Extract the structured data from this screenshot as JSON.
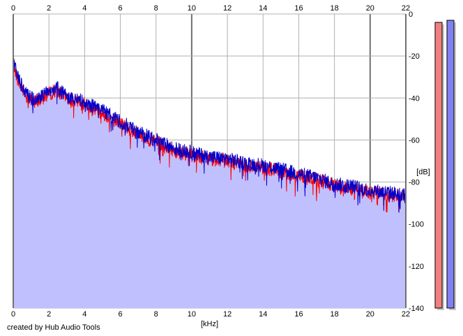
{
  "chart_data": {
    "type": "area",
    "xlabel": "[kHz]",
    "ylabel": "[dB]",
    "xlim": [
      0,
      22
    ],
    "ylim": [
      -140,
      0
    ],
    "x_ticks": [
      0,
      2,
      4,
      6,
      8,
      10,
      12,
      14,
      16,
      18,
      20,
      22
    ],
    "y_ticks": [
      0,
      -20,
      -40,
      -60,
      -80,
      -100,
      -120,
      -140
    ],
    "grid": true,
    "series": [
      {
        "color": "#ff0000",
        "x": [
          0,
          0.2,
          0.4,
          0.8,
          1.2,
          2.0,
          2.4,
          3.0,
          4.0,
          5.0,
          6.0,
          7.0,
          8.0,
          9.0,
          10.0,
          11.0,
          12.0,
          13.0,
          14.0,
          15.0,
          16.0,
          17.0,
          18.0,
          19.0,
          20.0,
          21.0,
          22.0
        ],
        "values": [
          -22,
          -30,
          -34,
          -40,
          -42,
          -38,
          -36,
          -40,
          -43,
          -47,
          -52,
          -57,
          -61,
          -65,
          -67,
          -69,
          -70,
          -72,
          -73,
          -75,
          -77,
          -79,
          -82,
          -83,
          -85,
          -86,
          -87
        ]
      },
      {
        "color": "#0000cc",
        "x": [
          0,
          0.2,
          0.4,
          0.8,
          1.2,
          2.0,
          2.4,
          3.0,
          4.0,
          5.0,
          6.0,
          7.0,
          8.0,
          9.0,
          10.0,
          11.0,
          12.0,
          13.0,
          14.0,
          15.0,
          16.0,
          17.0,
          18.0,
          19.0,
          20.0,
          21.0,
          22.0
        ],
        "values": [
          -20,
          -28,
          -33,
          -39,
          -41,
          -37,
          -35,
          -39,
          -42,
          -46,
          -51,
          -56,
          -60,
          -64,
          -66,
          -68,
          -69,
          -71,
          -72,
          -74,
          -76,
          -78,
          -81,
          -82,
          -84,
          -85,
          -86
        ]
      }
    ],
    "area_fill": "#c0c0ff",
    "level_meters": [
      {
        "channel": "left",
        "color": "#f08080",
        "level_db": -4
      },
      {
        "channel": "right",
        "color": "#8080f0",
        "level_db": -3
      }
    ]
  },
  "footer": {
    "credit": "created by Hub Audio Tools"
  }
}
